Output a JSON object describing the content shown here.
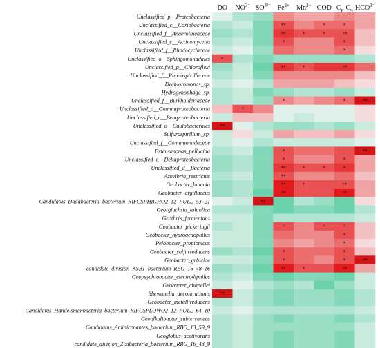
{
  "chart_data": {
    "type": "heatmap",
    "title": "",
    "xlabel": "",
    "ylabel": "",
    "columns": [
      {
        "base": "DO",
        "sup": ""
      },
      {
        "base": "NO",
        "sup": "3⁻"
      },
      {
        "base": "SO",
        "sup": "4²⁻"
      },
      {
        "base": "Fe",
        "sup": "2+"
      },
      {
        "base": "Mn",
        "sup": "2+"
      },
      {
        "base": "COD",
        "sup": ""
      },
      {
        "base": "C",
        "sub1": "6",
        "mid": "-C",
        "sub2": "9"
      },
      {
        "base": "HCO",
        "sup": "3⁻"
      }
    ],
    "rows": [
      "Unclassified_p__Proteobacteria",
      "Unclassified_c__Coriobacteria",
      "Unclassified_f__Anaerolineaceae",
      "Unclassified_c__Actinomycetia",
      "Unclassified_f__Rhodocyclaceae",
      "Unclassified_o__Sphingomonadales",
      "Unclassified_p__Chloroflexi",
      "Unclassified_f__Rhodospirillaceae",
      "Dechloromonas_sp.",
      "Hydrogenophaga_sp.",
      "Unclassified_f__Burkholderiaceae",
      "Unclassified_c__Gammaproteobacteria",
      "Unclassified_c__Betaproteobacteria",
      "Unclassified_o__Caulobacterales",
      "Sulfurospirillum_sp.",
      "Unclassified_f__Comamonadaceae",
      "Extensimonas_pellucida",
      "Unclassified_c__Deltaproteobacteria",
      "Unclassified_d__Bacteria",
      "Azovibrio_restrictus",
      "Geobacter_luticola",
      "Geobacter_argillaceus",
      "Candidatus_Dadabacteria_bacterium_RIFCSPHIGHO2_12_FULL_53_21",
      "Georgfuchsia_toluolica",
      "Geothrix_fermentans",
      "Geobacter_pickeringii",
      "Geobacter_hydrogenophilus",
      "Pelobacter_propionicus",
      "Geobacter_sulfurreducens",
      "Geobacter_grbiciae",
      "candidate_division_KSB1_bacterium_RBG_16_48_16",
      "Geopsychrobacter_electrodiphilus",
      "Geobacter_chapellei",
      "Shewanella_decolorationis",
      "Geobacter_metallireducens",
      "Candidatus_Handelsmanbacteria_bacterium_RIFCSPLOWO2_12_FULL_64_10",
      "Geoalkalibacter_subterraneus",
      "Candidatus_Aminicenantes_bacterium_RBG_13_59_9",
      "Geoglobus_acetivorans",
      "candidate_division_Zixibacteria_bacterium_RBG_16_43_9"
    ],
    "values": [
      [
        -0.1,
        -0.3,
        -0.4,
        0.4,
        0.3,
        0.3,
        0.4,
        0.3
      ],
      [
        -0.3,
        -0.2,
        -0.5,
        0.6,
        0.4,
        0.5,
        0.5,
        0.3
      ],
      [
        -0.4,
        -0.3,
        -0.5,
        0.7,
        0.6,
        0.6,
        0.6,
        0.2
      ],
      [
        -0.3,
        -0.2,
        -0.5,
        0.6,
        0.4,
        0.4,
        0.6,
        0.2
      ],
      [
        -0.2,
        -0.1,
        -0.4,
        0.5,
        0.4,
        0.4,
        0.5,
        0.1
      ],
      [
        0.6,
        -0.3,
        -0.5,
        -0.4,
        -0.4,
        -0.4,
        -0.4,
        -0.3
      ],
      [
        -0.4,
        -0.2,
        -0.6,
        0.7,
        0.6,
        0.7,
        0.7,
        0.5
      ],
      [
        -0.3,
        -0.2,
        -0.5,
        0.4,
        0.4,
        0.4,
        0.4,
        0.2
      ],
      [
        -0.2,
        -0.1,
        -0.3,
        0.3,
        0.3,
        0.3,
        0.2,
        0.1
      ],
      [
        -0.3,
        -0.2,
        -0.5,
        -0.4,
        -0.3,
        -0.3,
        -0.4,
        -0.2
      ],
      [
        -0.3,
        -0.2,
        -0.4,
        0.4,
        0.3,
        0.4,
        0.5,
        0.9
      ],
      [
        0.2,
        0.6,
        0.4,
        -0.1,
        -0.1,
        -0.1,
        -0.1,
        0.1
      ],
      [
        -0.2,
        0.2,
        0.2,
        -0.1,
        -0.2,
        -0.1,
        -0.1,
        0.1
      ],
      [
        0.9,
        -0.1,
        -0.3,
        -0.4,
        -0.4,
        -0.3,
        -0.4,
        -0.2
      ],
      [
        -0.2,
        0.1,
        -0.2,
        0.3,
        0.2,
        0.2,
        0.3,
        0.1
      ],
      [
        -0.2,
        -0.1,
        -0.3,
        -0.2,
        -0.2,
        -0.2,
        -0.2,
        -0.1
      ],
      [
        -0.3,
        -0.2,
        -0.5,
        0.6,
        0.5,
        0.5,
        0.6,
        0.9
      ],
      [
        -0.4,
        -0.3,
        -0.5,
        0.6,
        0.4,
        0.4,
        0.6,
        0.3
      ],
      [
        -0.4,
        -0.3,
        -0.5,
        0.7,
        0.6,
        0.6,
        0.7,
        0.3
      ],
      [
        -0.3,
        -0.2,
        -0.5,
        0.6,
        0.4,
        0.4,
        0.5,
        0.2
      ],
      [
        -0.4,
        -0.3,
        -0.5,
        0.8,
        0.6,
        0.6,
        0.6,
        0.3
      ],
      [
        -0.4,
        -0.3,
        -0.6,
        0.8,
        0.6,
        0.6,
        0.8,
        0.3
      ],
      [
        -0.1,
        -0.2,
        0.9,
        -0.6,
        -0.3,
        -0.4,
        -0.6,
        0.1
      ],
      [
        -0.3,
        -0.3,
        -0.5,
        -0.6,
        -0.5,
        -0.5,
        -0.6,
        -0.3
      ],
      [
        -0.2,
        -0.2,
        -0.5,
        -0.3,
        -0.3,
        -0.3,
        -0.3,
        -0.2
      ],
      [
        -0.3,
        -0.2,
        -0.5,
        0.6,
        0.4,
        0.6,
        0.6,
        0.2
      ],
      [
        -0.2,
        -0.2,
        -0.5,
        0.5,
        0.4,
        0.4,
        0.6,
        0.2
      ],
      [
        -0.2,
        -0.2,
        -0.5,
        0.4,
        0.3,
        0.4,
        0.5,
        0.1
      ],
      [
        -0.4,
        -0.3,
        -0.6,
        0.6,
        0.5,
        0.5,
        0.6,
        0.2
      ],
      [
        -0.2,
        -0.2,
        -0.5,
        0.6,
        0.5,
        0.4,
        0.6,
        0.9
      ],
      [
        -0.4,
        -0.3,
        -0.6,
        0.8,
        0.6,
        0.6,
        0.8,
        0.3
      ],
      [
        -0.3,
        -0.2,
        -0.5,
        -0.6,
        -0.5,
        -0.5,
        -0.6,
        -0.2
      ],
      [
        -0.2,
        -0.1,
        -0.3,
        -0.4,
        -0.3,
        -0.6,
        -0.4,
        -0.2
      ],
      [
        0.9,
        -0.2,
        -0.4,
        -0.5,
        -0.4,
        -0.4,
        -0.5,
        -0.3
      ],
      [
        -0.3,
        -0.2,
        -0.4,
        -0.5,
        -0.4,
        -0.4,
        -0.5,
        -0.3
      ],
      [
        -0.2,
        -0.1,
        -0.3,
        -0.3,
        -0.3,
        -0.3,
        -0.3,
        -0.2
      ],
      [
        -0.3,
        -0.2,
        -0.4,
        -0.5,
        -0.4,
        -0.4,
        -0.5,
        -0.3
      ],
      [
        -0.3,
        -0.2,
        -0.4,
        -0.4,
        -0.4,
        -0.4,
        -0.4,
        -0.2
      ],
      [
        -0.3,
        -0.2,
        -0.4,
        -0.5,
        -0.4,
        -0.4,
        -0.5,
        -0.2
      ],
      [
        -0.3,
        -0.2,
        -0.4,
        -0.5,
        -0.4,
        -0.4,
        -0.5,
        -0.2
      ]
    ],
    "significance": [
      [
        "",
        "",
        "",
        "",
        "",
        "",
        "",
        ""
      ],
      [
        "",
        "",
        "",
        "**",
        "",
        "*",
        "*",
        ""
      ],
      [
        "",
        "",
        "",
        "**",
        "*",
        "*",
        "**",
        ""
      ],
      [
        "",
        "",
        "",
        "*",
        "",
        "",
        "*",
        ""
      ],
      [
        "",
        "",
        "",
        "",
        "",
        "",
        "*",
        ""
      ],
      [
        "*",
        "",
        "",
        "",
        "",
        "",
        "",
        ""
      ],
      [
        "",
        "",
        "",
        "**",
        "*",
        "",
        "**",
        ""
      ],
      [
        "",
        "",
        "",
        "",
        "",
        "",
        "",
        ""
      ],
      [
        "",
        "",
        "",
        "",
        "",
        "",
        "",
        ""
      ],
      [
        "",
        "",
        "",
        "",
        "",
        "",
        "",
        ""
      ],
      [
        "",
        "",
        "",
        "*",
        "",
        "",
        "*",
        "**"
      ],
      [
        "",
        "*",
        "",
        "",
        "",
        "",
        "",
        ""
      ],
      [
        "",
        "",
        "",
        "",
        "",
        "",
        "",
        ""
      ],
      [
        "**",
        "",
        "",
        "",
        "",
        "",
        "",
        ""
      ],
      [
        "",
        "",
        "",
        "",
        "",
        "",
        "",
        ""
      ],
      [
        "",
        "",
        "",
        "",
        "",
        "",
        "",
        ""
      ],
      [
        "",
        "",
        "",
        "*",
        "",
        "",
        "",
        "**"
      ],
      [
        "",
        "",
        "",
        "*",
        "",
        "",
        "*",
        ""
      ],
      [
        "",
        "",
        "",
        "**",
        "*",
        "*",
        "*",
        ""
      ],
      [
        "",
        "",
        "",
        "**",
        "",
        "",
        "",
        ""
      ],
      [
        "",
        "",
        "",
        "**",
        "*",
        "",
        "**",
        ""
      ],
      [
        "",
        "",
        "",
        "**",
        "",
        "",
        "**",
        ""
      ],
      [
        "",
        "",
        "**",
        "",
        "",
        "",
        "",
        ""
      ],
      [
        "",
        "",
        "",
        "",
        "",
        "",
        "",
        ""
      ],
      [
        "",
        "",
        "",
        "",
        "",
        "",
        "",
        ""
      ],
      [
        "",
        "",
        "",
        "*",
        "",
        "*",
        "*",
        ""
      ],
      [
        "",
        "",
        "",
        "",
        "",
        "",
        "*",
        ""
      ],
      [
        "",
        "",
        "",
        "",
        "",
        "",
        "*",
        ""
      ],
      [
        "",
        "",
        "",
        "*",
        "",
        "",
        "*",
        ""
      ],
      [
        "",
        "",
        "",
        "*",
        "",
        "",
        "*",
        "**"
      ],
      [
        "",
        "",
        "",
        "**",
        "*",
        "",
        "**",
        ""
      ],
      [
        "",
        "",
        "",
        "",
        "",
        "",
        "",
        ""
      ],
      [
        "",
        "",
        "",
        "",
        "",
        "",
        "",
        ""
      ],
      [
        "**",
        "",
        "",
        "",
        "",
        "",
        "",
        ""
      ],
      [
        "",
        "",
        "",
        "",
        "",
        "",
        "",
        ""
      ],
      [
        "",
        "",
        "",
        "",
        "",
        "",
        "",
        ""
      ],
      [
        "",
        "",
        "",
        "",
        "",
        "",
        "",
        ""
      ],
      [
        "",
        "",
        "",
        "",
        "",
        "",
        "",
        ""
      ],
      [
        "",
        "",
        "",
        "",
        "",
        "",
        "",
        ""
      ],
      [
        "",
        "",
        "",
        "",
        "",
        "",
        "",
        ""
      ]
    ],
    "colors": {
      "negative": "#0fb97a",
      "neutral": "#f7f7f7",
      "positive": "#e41a1c",
      "strong_positive": "#c40d12"
    },
    "value_range": [
      -1,
      1
    ],
    "grid": false,
    "legend": "none"
  }
}
